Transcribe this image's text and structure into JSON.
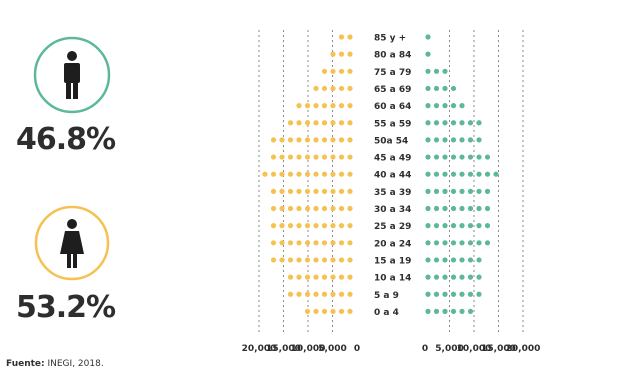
{
  "infographic": {
    "male_percent": "46.8%",
    "female_percent": "53.2%",
    "source_label": "Fuente:",
    "source_text": " INEGI, 2018."
  },
  "chart_data": {
    "type": "bar",
    "style": "dot-pyramid",
    "categories": [
      "85 y +",
      "80 a 84",
      "75 a 79",
      "65 a 69",
      "60 a 64",
      "55 a 59",
      "50a 54",
      "45 a 49",
      "40 a 44",
      "35 a 39",
      "30 a 34",
      "25 a 29",
      "20 a 24",
      "15 a 19",
      "10 a 14",
      "5 a 9",
      "0 a 4"
    ],
    "series": [
      {
        "side": "left",
        "color": "#f5c252",
        "values": [
          4000,
          4500,
          7000,
          8500,
          11500,
          13500,
          17000,
          17500,
          19000,
          17000,
          18000,
          17500,
          17500,
          16500,
          14500,
          13500,
          11000
        ]
      },
      {
        "side": "right",
        "color": "#5db89a",
        "values": [
          2000,
          2500,
          4500,
          6500,
          8000,
          12000,
          11500,
          13500,
          15000,
          13500,
          14500,
          14500,
          14500,
          12500,
          13000,
          12500,
          10500
        ]
      }
    ],
    "xlim_left": [
      20000,
      0
    ],
    "xlim_right": [
      0,
      20000
    ],
    "left_tick_labels": [
      "20,000",
      "15,000",
      "10,000",
      "5,000",
      "0"
    ],
    "right_tick_labels": [
      "0",
      "5,000",
      "10,000",
      "15,000",
      "20,000"
    ],
    "gridlines": "dashed"
  }
}
